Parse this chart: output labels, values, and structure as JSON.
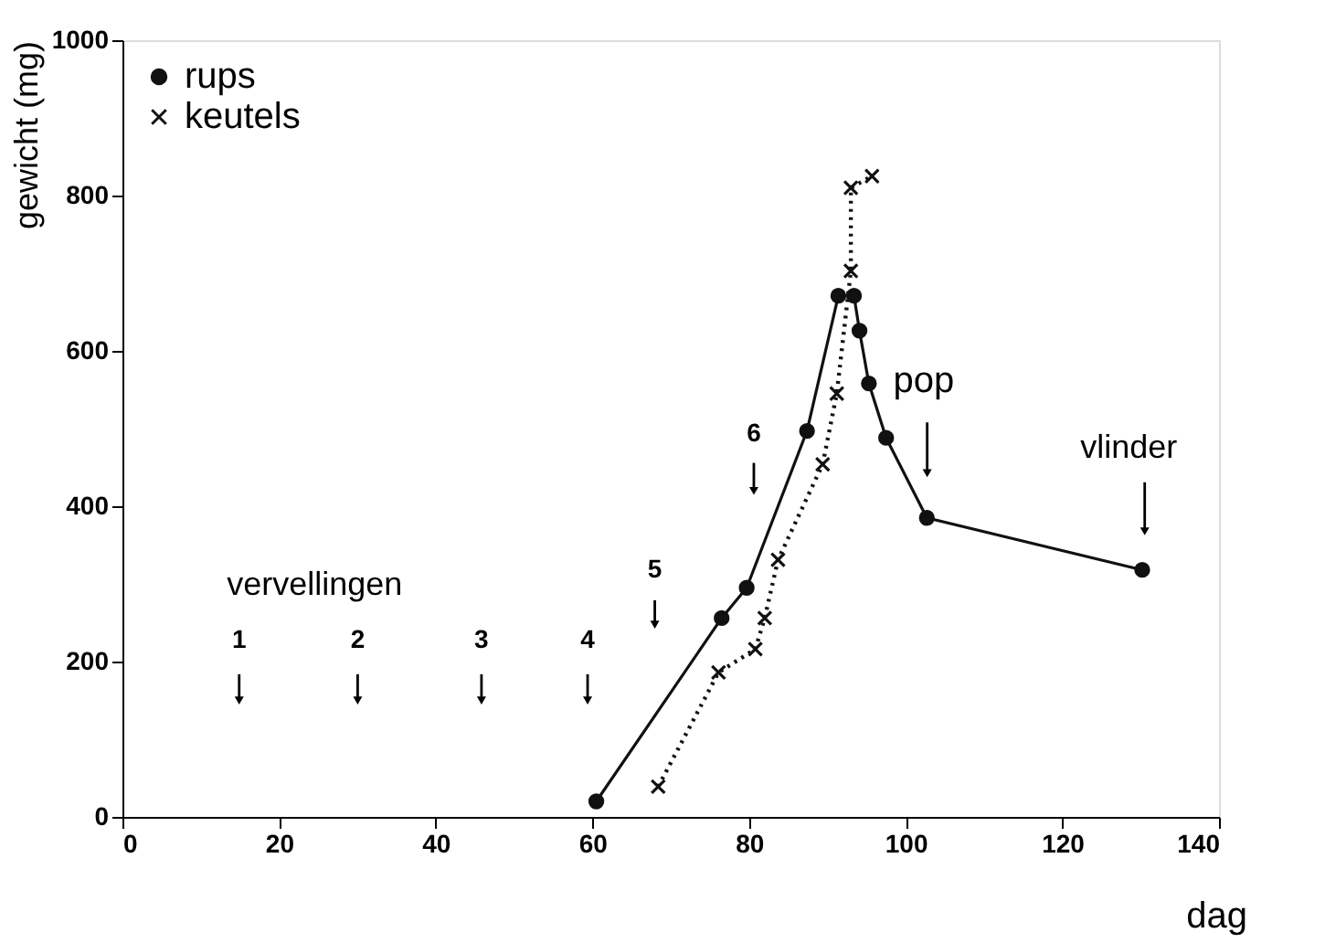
{
  "chart_data": {
    "type": "line",
    "xlabel": "dag",
    "ylabel": "gewicht (mg)",
    "xlim": [
      0,
      140
    ],
    "xticks": [
      0,
      20,
      40,
      60,
      80,
      100,
      120,
      140
    ],
    "ylim": [
      0,
      1000
    ],
    "yticks": [
      0,
      200,
      400,
      600,
      800,
      {
        "value": 1000,
        "label": "1000"
      }
    ],
    "grid": false,
    "legend": "top left",
    "series": [
      {
        "name": "rups",
        "color": "#111111",
        "marker": "circle",
        "line_style": "solid",
        "x": [
          60.5,
          76.5,
          79.7,
          87.4,
          91.4,
          93.4,
          94.1,
          95.3,
          97.5,
          102.7,
          130.2
        ],
        "values": [
          20,
          256,
          295,
          497,
          671,
          671,
          626,
          558,
          488,
          385,
          318
        ]
      },
      {
        "name": "keutels",
        "color": "#111111",
        "marker": "cross",
        "line_style": "dotted",
        "x": [
          68.4,
          76.1,
          80.8,
          82.0,
          83.7,
          89.4,
          91.2,
          93.0,
          93.0,
          95.7
        ],
        "values": [
          39,
          186,
          216,
          256,
          331,
          454,
          545,
          703,
          810,
          825
        ]
      }
    ],
    "annotations": [
      "vervellingen",
      "1",
      "2",
      "3",
      "4",
      "5",
      "6",
      "pop",
      "vlinder"
    ]
  }
}
